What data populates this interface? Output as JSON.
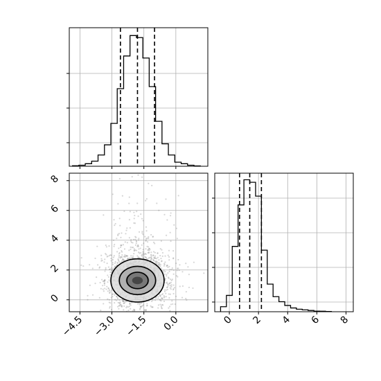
{
  "chart_data": {
    "type": "corner",
    "grid": true,
    "parameters": [
      {
        "id": "p1",
        "xlim": [
          -5.0,
          1.5
        ],
        "ticks": [
          -4.5,
          -3.0,
          -1.5,
          0.0
        ],
        "tick_labels": [
          "−4.5",
          "−3.0",
          "−1.5",
          "0.0"
        ],
        "quantiles": [
          -2.6,
          -1.8,
          -1.0
        ],
        "hist": {
          "bin_edges": [
            -4.85,
            -4.55,
            -4.25,
            -3.95,
            -3.65,
            -3.35,
            -3.05,
            -2.75,
            -2.45,
            -2.15,
            -1.85,
            -1.55,
            -1.25,
            -0.95,
            -0.65,
            -0.35,
            -0.05,
            0.25,
            0.55,
            0.85,
            1.15
          ],
          "counts": [
            0.5,
            1,
            2.5,
            5,
            11,
            21,
            42,
            76,
            108,
            128,
            126,
            106,
            78,
            44,
            22,
            11,
            4,
            2.5,
            1,
            0.3
          ]
        }
      },
      {
        "id": "p2",
        "xlim": [
          -1.0,
          8.5
        ],
        "ticks": [
          0,
          2,
          4,
          6,
          8
        ],
        "tick_labels": [
          "0",
          "2",
          "4",
          "6",
          "8"
        ],
        "quantiles": [
          0.7,
          1.4,
          2.2
        ],
        "hist": {
          "bin_edges": [
            -0.6,
            -0.2,
            0.2,
            0.6,
            1.0,
            1.4,
            1.8,
            2.2,
            2.6,
            3.0,
            3.4,
            3.8,
            4.2,
            4.6,
            5.0,
            5.4,
            5.8,
            6.2,
            6.6,
            7.0
          ],
          "counts": [
            4,
            13,
            52,
            85,
            105,
            103,
            92,
            49,
            22,
            12,
            8,
            5,
            3,
            2,
            1.5,
            1,
            0.5,
            0.4,
            0.2
          ]
        }
      }
    ],
    "scatter": {
      "x_param": "p1",
      "y_param": "p2",
      "ylim": [
        -0.8,
        8.5
      ],
      "yticks": [
        0,
        2,
        4,
        6,
        8
      ],
      "ytick_labels": [
        "0",
        "2",
        "4",
        "6",
        "8"
      ],
      "center": [
        -1.8,
        1.4
      ],
      "spread": [
        0.8,
        1.0
      ],
      "n_points": 1600,
      "contour_levels": [
        {
          "rx": 1.25,
          "ry": 1.45
        },
        {
          "rx": 0.85,
          "ry": 0.95
        },
        {
          "rx": 0.5,
          "ry": 0.55
        }
      ]
    }
  }
}
